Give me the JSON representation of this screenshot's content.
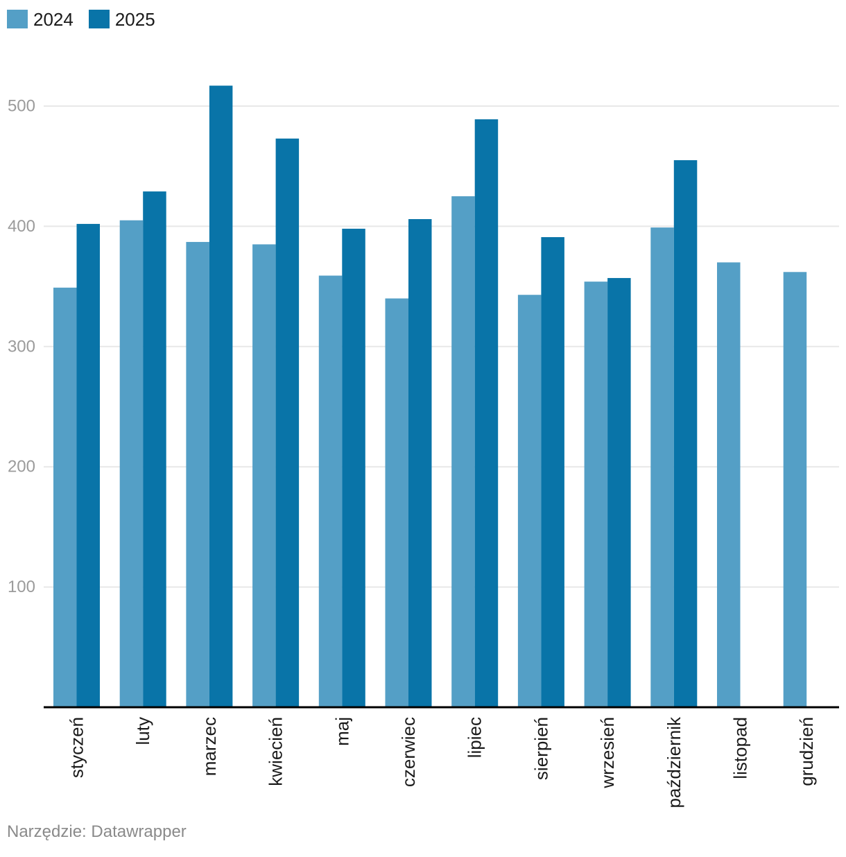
{
  "legend": {
    "items": [
      {
        "label": "2024",
        "color": "#549fc6"
      },
      {
        "label": "2025",
        "color": "#0974a8"
      }
    ]
  },
  "chart_data": {
    "type": "bar",
    "categories": [
      "styczeń",
      "luty",
      "marzec",
      "kwiecień",
      "maj",
      "czerwiec",
      "lipiec",
      "sierpień",
      "wrzesień",
      "październik",
      "listopad",
      "grudzień"
    ],
    "series": [
      {
        "name": "2024",
        "color": "#549fc6",
        "values": [
          349,
          405,
          387,
          385,
          359,
          340,
          425,
          343,
          354,
          399,
          370,
          362
        ]
      },
      {
        "name": "2025",
        "color": "#0974a8",
        "values": [
          402,
          429,
          517,
          473,
          398,
          406,
          489,
          391,
          357,
          455,
          null,
          null
        ]
      }
    ],
    "title": "",
    "xlabel": "",
    "ylabel": "",
    "ylim": [
      0,
      550
    ],
    "yticks": [
      100,
      200,
      300,
      400,
      500
    ],
    "grid": true,
    "legend_position": "top-left",
    "colors": {
      "axis": "#000000",
      "gridline": "#e8e8e8",
      "tick_label": "#9b9b9b",
      "category_label": "#1a1a1a"
    }
  },
  "footer": {
    "text": "Narzędzie: Datawrapper"
  }
}
